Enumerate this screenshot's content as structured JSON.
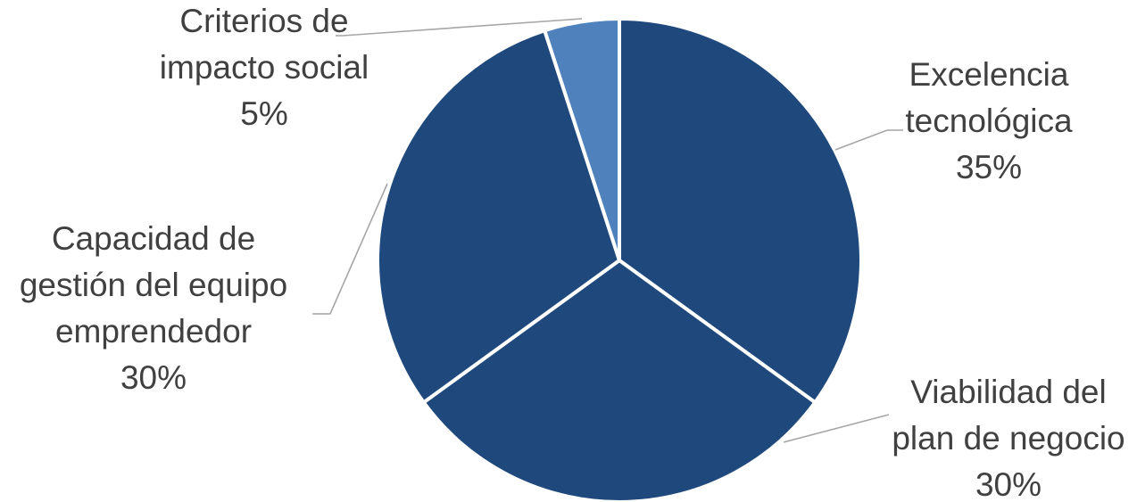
{
  "chart_data": {
    "type": "pie",
    "title": "",
    "start_angle_deg": 0,
    "direction": "clockwise",
    "slices": [
      {
        "label": [
          "Excelencia",
          "tecnológica"
        ],
        "value": 35,
        "value_label": "35%",
        "color": "#1f497d"
      },
      {
        "label": [
          "Viabilidad del",
          "plan de negocio"
        ],
        "value": 30,
        "value_label": "30%",
        "color": "#1f497d"
      },
      {
        "label": [
          "Capacidad de",
          "gestión del equipo",
          "emprendedor"
        ],
        "value": 30,
        "value_label": "30%",
        "color": "#1f497d"
      },
      {
        "label": [
          "Criterios de",
          "impacto social"
        ],
        "value": 5,
        "value_label": "5%",
        "color": "#4f81bd"
      }
    ]
  }
}
